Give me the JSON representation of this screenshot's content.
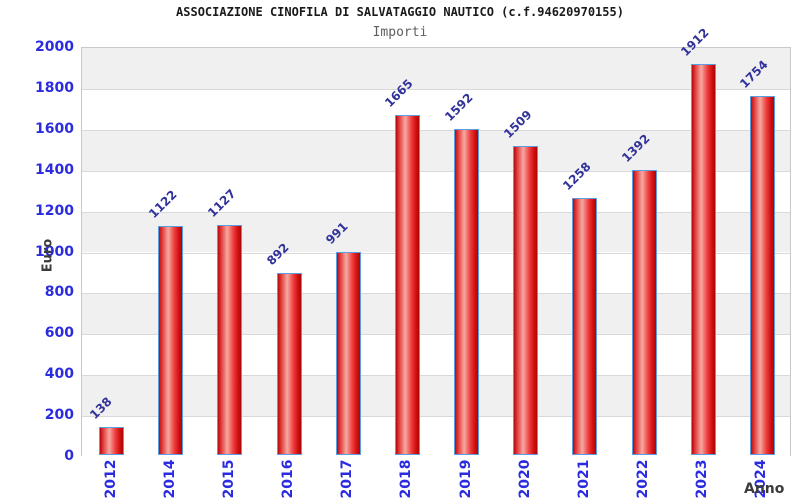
{
  "chart_data": {
    "type": "bar",
    "title": "ASSOCIAZIONE CINOFILA DI SALVATAGGIO NAUTICO (c.f.94620970155)",
    "subtitle": "Importi",
    "xlabel": "Anno",
    "ylabel": "Euro",
    "categories": [
      "2012",
      "2014",
      "2015",
      "2016",
      "2017",
      "2018",
      "2019",
      "2020",
      "2021",
      "2022",
      "2023",
      "2024"
    ],
    "values": [
      138,
      1122,
      1127,
      892,
      991,
      1665,
      1592,
      1509,
      1258,
      1392,
      1912,
      1754
    ],
    "ylim": [
      0,
      2000
    ],
    "yticks": [
      0,
      200,
      400,
      600,
      800,
      1000,
      1200,
      1400,
      1600,
      1800,
      2000
    ],
    "grid": "horizontal-bands",
    "legend": "none",
    "colors": {
      "title_text": "#1a1a1a",
      "subtitle_text": "#5f5f5f",
      "tick_label": "#2b2bdf",
      "value_label": "#32329b",
      "axis_title": "#3b3b3b",
      "bar_border": "#5a9de0",
      "bar_gradient": [
        "#b40b0b",
        "#e33b3b",
        "#f5a9a2",
        "#ef4040",
        "#d01111",
        "#ae0505"
      ],
      "band_gray": "#f0f0f0",
      "band_white": "#ffffff",
      "gridline": "#d9d9d9",
      "plot_border": "#c9c9c9"
    }
  }
}
